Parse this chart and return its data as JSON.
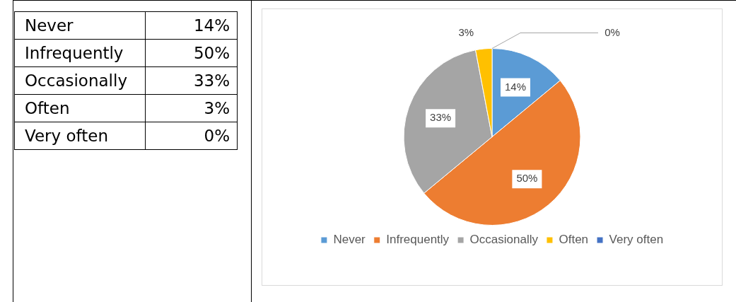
{
  "chart_data": {
    "type": "pie",
    "categories": [
      "Never",
      "Infrequently",
      "Occasionally",
      "Often",
      "Very often"
    ],
    "values": [
      14,
      50,
      33,
      3,
      0
    ],
    "value_labels": [
      "14%",
      "50%",
      "33%",
      "3%",
      "0%"
    ],
    "colors": [
      "#5b9bd5",
      "#ed7d31",
      "#a5a5a5",
      "#ffc000",
      "#4472c4"
    ],
    "data_labels": true,
    "legend": "bottom"
  }
}
